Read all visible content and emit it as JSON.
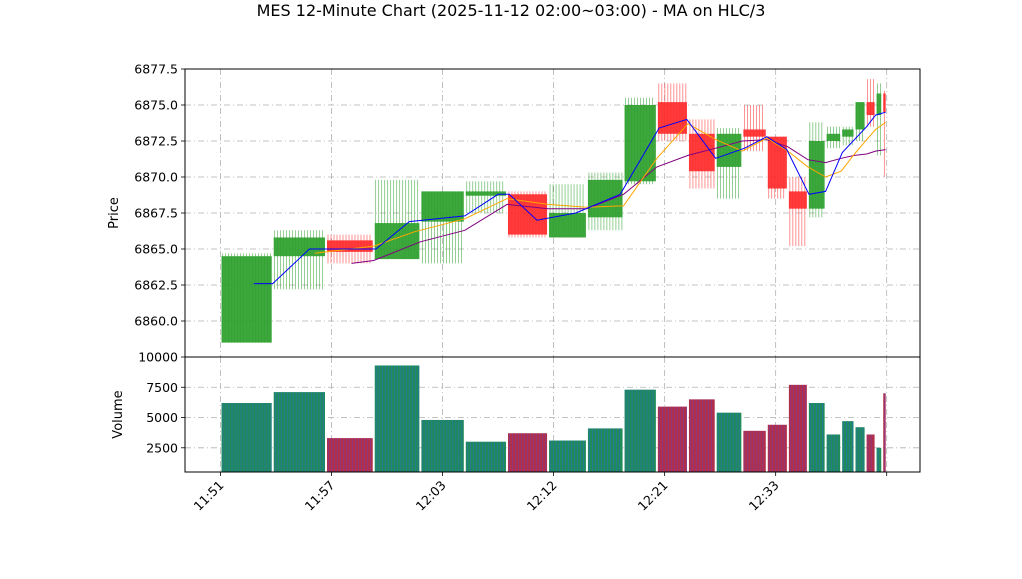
{
  "chart_data": {
    "type": "candlestick",
    "title": "MES 12-Minute Chart (2025-11-12 02:00~03:00) - MA on HLC/3",
    "price_panel": {
      "ylabel": "Price",
      "ylim": [
        6857.5,
        6877.5
      ],
      "yticks": [
        "6860.0",
        "6862.5",
        "6865.0",
        "6867.5",
        "6870.0",
        "6872.5",
        "6875.0",
        "6877.5"
      ],
      "grid": true
    },
    "volume_panel": {
      "ylabel": "Volume",
      "ylim": [
        500,
        10000
      ],
      "yticks": [
        "2500",
        "5000",
        "7500",
        "10000"
      ]
    },
    "x_tick_labels": [
      "11:51",
      "11:57",
      "12:03",
      "12:12",
      "12:21",
      "12:33"
    ],
    "colors": {
      "up": "#2ca02c",
      "down": "#ff2a2a",
      "vol_up": "#1f8a5a",
      "vol_down": "#b0304c",
      "ma_fast": "#0000ff",
      "ma_mid": "#ffa500",
      "ma_slow": "#800080",
      "grid": "#b0b0b0"
    },
    "candles": [
      {
        "open": 6858.5,
        "high": 6864.7,
        "low": 6858.5,
        "close": 6864.5,
        "volume": 6200
      },
      {
        "open": 6864.5,
        "high": 6866.3,
        "low": 6862.2,
        "close": 6865.8,
        "volume": 7100
      },
      {
        "open": 6865.6,
        "high": 6866.0,
        "low": 6864.0,
        "close": 6864.8,
        "volume": 3300
      },
      {
        "open": 6864.3,
        "high": 6869.8,
        "low": 6864.3,
        "close": 6866.8,
        "volume": 9300
      },
      {
        "open": 6866.9,
        "high": 6869.0,
        "low": 6864.0,
        "close": 6869.0,
        "volume": 4800
      },
      {
        "open": 6868.7,
        "high": 6869.7,
        "low": 6867.5,
        "close": 6869.0,
        "volume": 3000
      },
      {
        "open": 6868.8,
        "high": 6869.0,
        "low": 6865.8,
        "close": 6866.0,
        "volume": 3700
      },
      {
        "open": 6865.8,
        "high": 6869.5,
        "low": 6865.8,
        "close": 6867.5,
        "volume": 3100
      },
      {
        "open": 6867.2,
        "high": 6870.3,
        "low": 6866.3,
        "close": 6869.8,
        "volume": 4100
      },
      {
        "open": 6869.7,
        "high": 6875.5,
        "low": 6869.5,
        "close": 6875.0,
        "volume": 7300
      },
      {
        "open": 6875.2,
        "high": 6876.5,
        "low": 6872.5,
        "close": 6873.0,
        "volume": 5900
      },
      {
        "open": 6873.0,
        "high": 6874.0,
        "low": 6869.2,
        "close": 6870.4,
        "volume": 6500
      },
      {
        "open": 6870.7,
        "high": 6873.4,
        "low": 6868.5,
        "close": 6873.0,
        "volume": 5400
      },
      {
        "open": 6873.3,
        "high": 6875.0,
        "low": 6871.8,
        "close": 6872.8,
        "volume": 3900
      },
      {
        "open": 6872.8,
        "high": 6872.8,
        "low": 6868.5,
        "close": 6869.2,
        "volume": 4400
      },
      {
        "open": 6869.0,
        "high": 6870.0,
        "low": 6865.2,
        "close": 6867.8,
        "volume": 7700
      },
      {
        "open": 6867.8,
        "high": 6873.8,
        "low": 6867.2,
        "close": 6872.5,
        "volume": 6200
      },
      {
        "open": 6872.5,
        "high": 6873.5,
        "low": 6872.0,
        "close": 6873.0,
        "volume": 3600
      },
      {
        "open": 6872.8,
        "high": 6873.5,
        "low": 6872.2,
        "close": 6873.3,
        "volume": 4700
      },
      {
        "open": 6873.3,
        "high": 6875.2,
        "low": 6872.5,
        "close": 6875.2,
        "volume": 4200
      },
      {
        "open": 6875.2,
        "high": 6876.8,
        "low": 6873.5,
        "close": 6874.3,
        "volume": 3600
      },
      {
        "open": 6874.3,
        "high": 6876.5,
        "low": 6871.5,
        "close": 6875.8,
        "volume": 2500
      },
      {
        "open": 6875.8,
        "high": 6876.0,
        "low": 6870.0,
        "close": 6874.5,
        "volume": 7000
      }
    ],
    "x_spans": [
      [
        0.0,
        4.7
      ],
      [
        4.7,
        9.5
      ],
      [
        9.5,
        13.8
      ],
      [
        13.8,
        18.0
      ],
      [
        18.0,
        22.0
      ],
      [
        22.0,
        25.8
      ],
      [
        25.8,
        29.5
      ],
      [
        29.5,
        33.0
      ],
      [
        33.0,
        36.3
      ],
      [
        36.3,
        39.3
      ],
      [
        39.3,
        42.1
      ],
      [
        42.1,
        44.6
      ],
      [
        44.6,
        47.0
      ],
      [
        47.0,
        49.2
      ],
      [
        49.2,
        51.1
      ],
      [
        51.1,
        52.9
      ],
      [
        52.9,
        54.5
      ],
      [
        54.5,
        55.9
      ],
      [
        55.9,
        57.1
      ],
      [
        57.1,
        58.1
      ],
      [
        58.1,
        59.0
      ],
      [
        59.0,
        59.6
      ],
      [
        59.6,
        60.0
      ]
    ],
    "x_tick_positions": [
      0,
      10,
      20,
      30,
      40,
      50
    ],
    "xlim": [
      -3.2,
      63.0
    ],
    "ma_fast": [
      [
        3,
        6862.6
      ],
      [
        4.7,
        6862.6
      ],
      [
        8,
        6865.0
      ],
      [
        14,
        6865.0
      ],
      [
        17,
        6866.9
      ],
      [
        22,
        6867.3
      ],
      [
        25,
        6868.8
      ],
      [
        26,
        6868.8
      ],
      [
        28.5,
        6867.0
      ],
      [
        32,
        6867.5
      ],
      [
        36,
        6868.8
      ],
      [
        39.5,
        6873.4
      ],
      [
        42,
        6874.0
      ],
      [
        44.6,
        6871.3
      ],
      [
        47.2,
        6872.0
      ],
      [
        49.2,
        6872.8
      ],
      [
        51,
        6871.9
      ],
      [
        53,
        6868.8
      ],
      [
        54.5,
        6869.0
      ],
      [
        56,
        6871.7
      ],
      [
        58.2,
        6873.5
      ],
      [
        59,
        6874.3
      ],
      [
        59.9,
        6874.5
      ]
    ],
    "ma_mid": [
      [
        8.5,
        6864.7
      ],
      [
        13.8,
        6865.2
      ],
      [
        17.5,
        6866.2
      ],
      [
        22,
        6867.1
      ],
      [
        25.8,
        6868.5
      ],
      [
        29.5,
        6868.1
      ],
      [
        33,
        6867.9
      ],
      [
        36.3,
        6868.0
      ],
      [
        39.3,
        6871.3
      ],
      [
        42.1,
        6873.7
      ],
      [
        44.6,
        6872.6
      ],
      [
        47.0,
        6871.8
      ],
      [
        49.2,
        6872.7
      ],
      [
        51.1,
        6871.8
      ],
      [
        52.9,
        6870.7
      ],
      [
        54.5,
        6870.0
      ],
      [
        55.9,
        6870.4
      ],
      [
        57.1,
        6871.6
      ],
      [
        58.2,
        6872.6
      ],
      [
        59.0,
        6873.3
      ],
      [
        59.9,
        6873.8
      ]
    ],
    "ma_slow": [
      [
        11.8,
        6864.0
      ],
      [
        13.8,
        6864.2
      ],
      [
        18.0,
        6865.5
      ],
      [
        22.0,
        6866.3
      ],
      [
        25.8,
        6868.1
      ],
      [
        29.5,
        6867.8
      ],
      [
        33.0,
        6867.8
      ],
      [
        36.3,
        6868.8
      ],
      [
        39.3,
        6870.7
      ],
      [
        42.1,
        6871.5
      ],
      [
        44.6,
        6872.0
      ],
      [
        47.0,
        6872.5
      ],
      [
        49.2,
        6872.6
      ],
      [
        51.1,
        6872.1
      ],
      [
        52.9,
        6871.2
      ],
      [
        54.5,
        6871.0
      ],
      [
        55.9,
        6871.3
      ],
      [
        57.1,
        6871.5
      ],
      [
        58.2,
        6871.6
      ],
      [
        59.0,
        6871.8
      ],
      [
        59.9,
        6871.9
      ]
    ]
  }
}
